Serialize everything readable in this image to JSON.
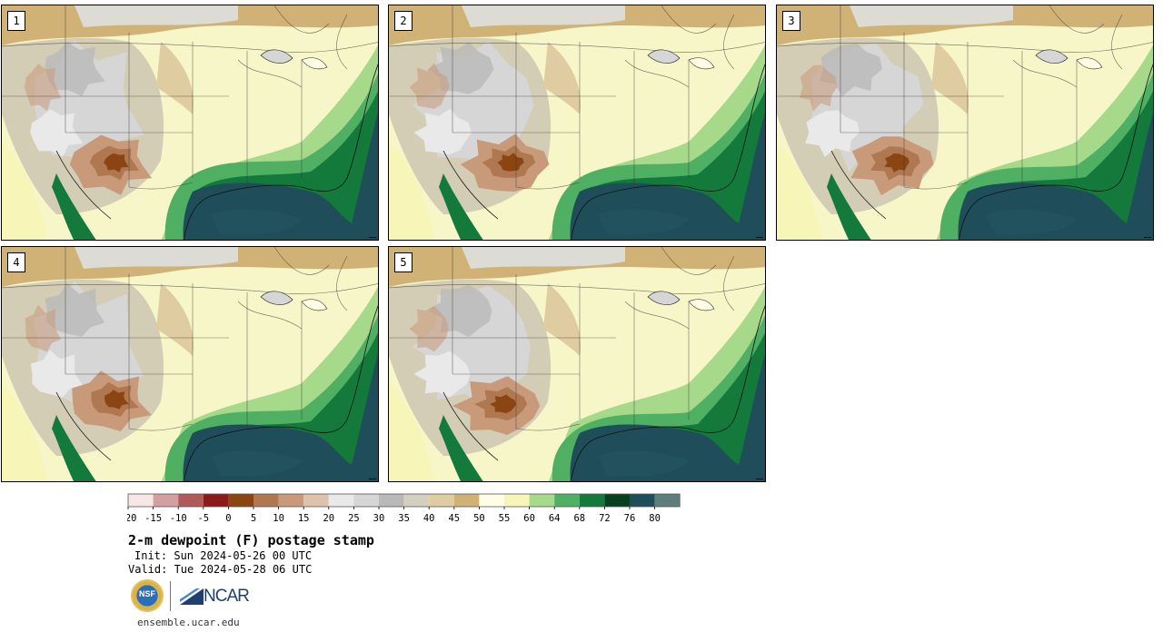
{
  "panels": [
    {
      "label": "1",
      "variant": 0
    },
    {
      "label": "2",
      "variant": 1
    },
    {
      "label": "3",
      "variant": 2
    },
    {
      "label": "4",
      "variant": 3
    },
    {
      "label": "5",
      "variant": 4
    }
  ],
  "colorbar": {
    "colors": [
      "#f6e6e6",
      "#d3a0a0",
      "#b05a5a",
      "#8b1a1a",
      "#8b4513",
      "#b07850",
      "#c99a7a",
      "#ddc3ad",
      "#e9e9e9",
      "#d6d6d6",
      "#b9b9b9",
      "#d4d0c0",
      "#dfcca0",
      "#d0b176",
      "#fffde4",
      "#f7f6b8",
      "#a6d98a",
      "#4fb064",
      "#137a3c",
      "#06401f",
      "#1f4e5a",
      "#5f7e7a"
    ],
    "ticks": [
      "-20",
      "-15",
      "-10",
      "-5",
      "0",
      "5",
      "10",
      "15",
      "20",
      "25",
      "30",
      "35",
      "40",
      "45",
      "50",
      "55",
      "60",
      "64",
      "68",
      "72",
      "76",
      "80"
    ]
  },
  "title": "2-m dewpoint (F) postage stamp",
  "init": "Init: Sun 2024-05-26 00 UTC",
  "valid": "Valid: Tue 2024-05-28 06 UTC",
  "logos": {
    "nsf": "NSF",
    "ncar": "NCAR"
  },
  "url": "ensemble.ucar.edu"
}
